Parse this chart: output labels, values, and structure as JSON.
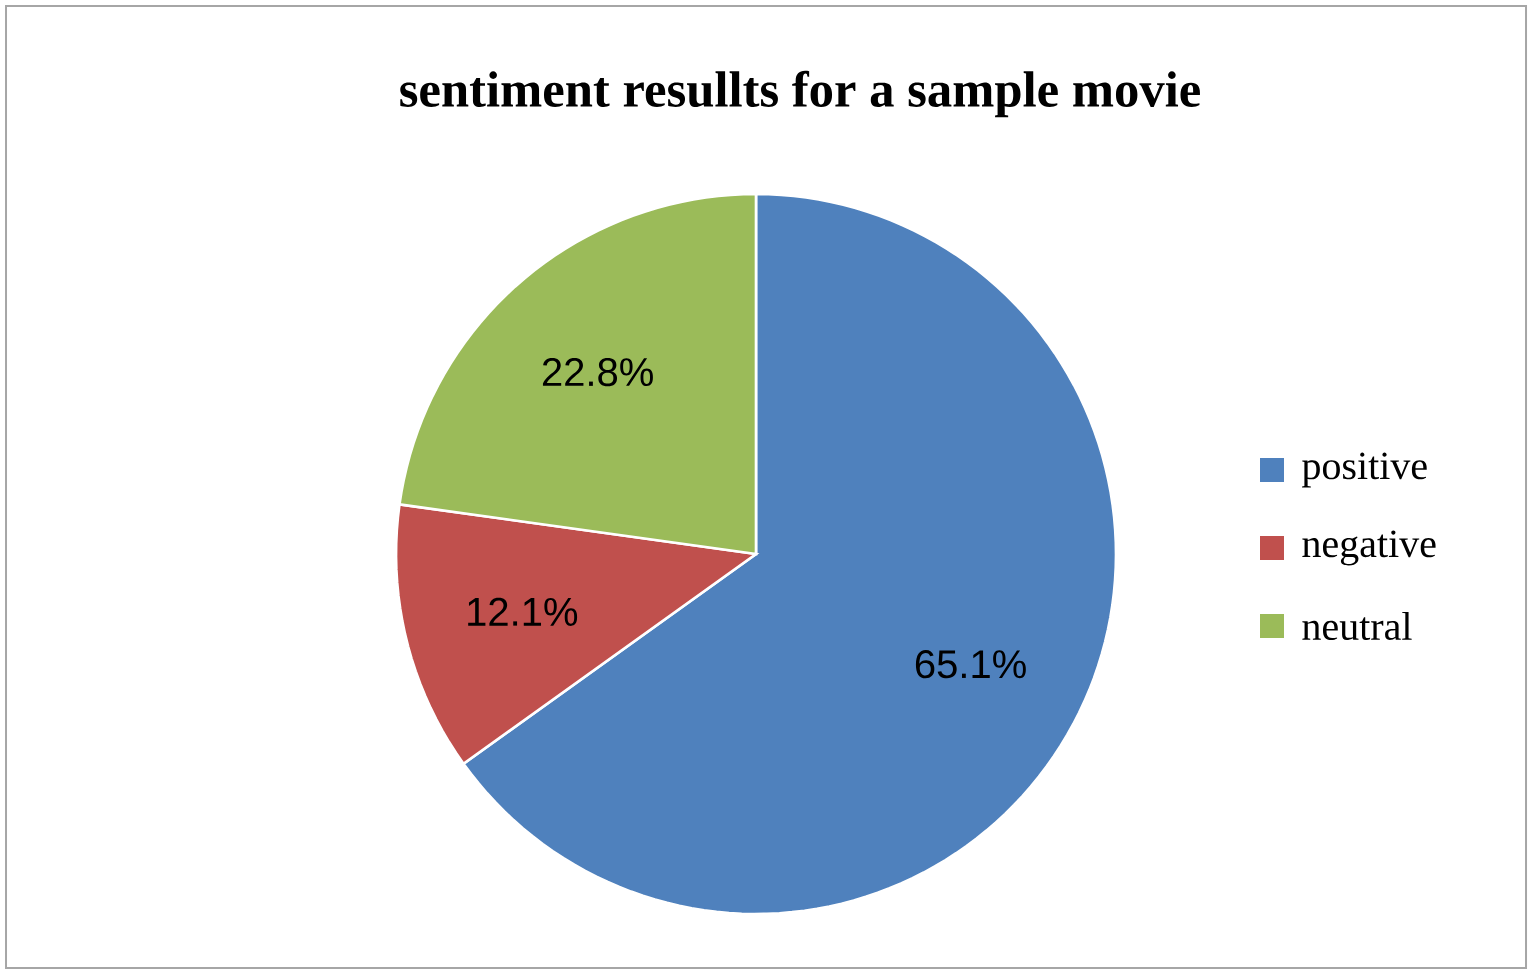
{
  "chart_data": {
    "type": "pie",
    "title": "sentiment resullts for a sample movie",
    "categories": [
      "positive",
      "negative",
      "neutral"
    ],
    "values": [
      65.1,
      12.1,
      22.8
    ],
    "value_labels": [
      "65.1%",
      "12.1%",
      "22.8%"
    ],
    "colors": [
      "#4f81bd",
      "#c0504d",
      "#9bbb59"
    ],
    "legend": "right"
  }
}
